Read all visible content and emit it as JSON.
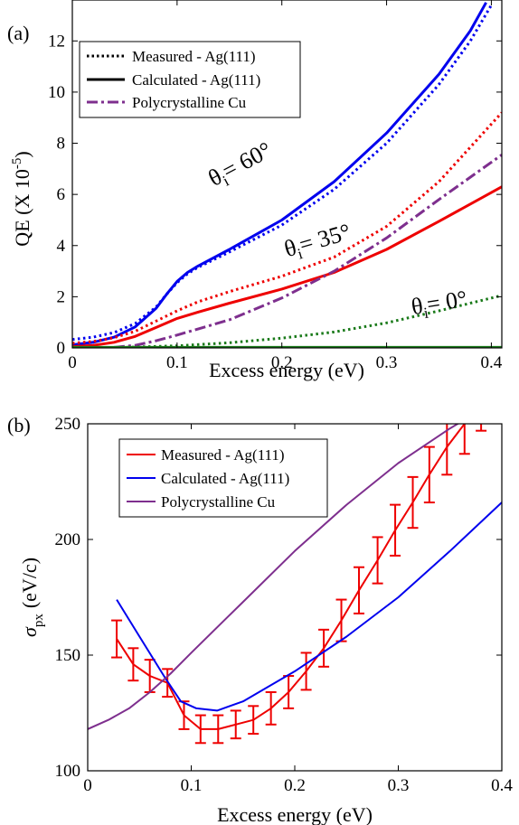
{
  "chart_data": [
    {
      "panel_label": "(a)",
      "type": "line",
      "xlabel": "Excess energy (eV)",
      "ylabel": "QE (X 10",
      "ylabel_exp": "-5",
      "ylabel_close": ")",
      "xlim": [
        0,
        0.41
      ],
      "ylim": [
        0,
        13.6
      ],
      "xticks": [
        0,
        0.1,
        0.2,
        0.3,
        0.4
      ],
      "xtick_labels": [
        "0",
        "0.1",
        "0.2",
        "0.3",
        "0.4"
      ],
      "yticks": [
        0,
        2,
        4,
        6,
        8,
        10,
        12
      ],
      "ytick_labels": [
        "0",
        "2",
        "4",
        "6",
        "8",
        "10",
        "12"
      ],
      "legend": {
        "placement": "top-left",
        "entries": [
          {
            "label": "Measured - Ag(111)",
            "style": "dotted",
            "color": "#000000"
          },
          {
            "label": "Calculated - Ag(111)",
            "style": "solid",
            "color": "#000000"
          },
          {
            "label": "Polycrystalline Cu",
            "style": "dashdot",
            "color": "#7e2f8e"
          }
        ]
      },
      "annotations": [
        {
          "prefix": "θ",
          "sub": "i",
          "suffix": "= 60°",
          "color": "#0000cc",
          "x": 0.135,
          "y": 6.3,
          "rotate": -28
        },
        {
          "prefix": "θ",
          "sub": "i",
          "suffix": "= 35°",
          "color": "#cc0000",
          "x": 0.205,
          "y": 3.55,
          "rotate": -16
        },
        {
          "prefix": "θ",
          "sub": "i",
          "suffix": "= 0°",
          "color": "#1a7a1a",
          "x": 0.325,
          "y": 1.3,
          "rotate": -9
        }
      ],
      "series": [
        {
          "style": "dotted",
          "color": "#0000ee",
          "x": [
            0,
            0.02,
            0.04,
            0.06,
            0.08,
            0.09,
            0.1,
            0.11,
            0.12,
            0.15,
            0.2,
            0.25,
            0.3,
            0.35,
            0.38,
            0.4
          ],
          "y": [
            0.33,
            0.42,
            0.6,
            0.95,
            1.6,
            2.1,
            2.55,
            2.9,
            3.15,
            3.75,
            4.8,
            6.2,
            8.0,
            10.3,
            12.0,
            13.4
          ]
        },
        {
          "style": "solid",
          "color": "#0000ee",
          "x": [
            0,
            0.02,
            0.04,
            0.06,
            0.08,
            0.09,
            0.1,
            0.11,
            0.12,
            0.15,
            0.2,
            0.25,
            0.3,
            0.35,
            0.38,
            0.395
          ],
          "y": [
            0.12,
            0.22,
            0.42,
            0.82,
            1.55,
            2.1,
            2.6,
            2.95,
            3.2,
            3.85,
            5.0,
            6.5,
            8.4,
            10.7,
            12.4,
            13.5
          ]
        },
        {
          "style": "dotted",
          "color": "#ee0000",
          "x": [
            0,
            0.02,
            0.04,
            0.06,
            0.08,
            0.1,
            0.12,
            0.15,
            0.2,
            0.25,
            0.3,
            0.35,
            0.41
          ],
          "y": [
            0.18,
            0.25,
            0.4,
            0.65,
            1.05,
            1.45,
            1.8,
            2.2,
            2.8,
            3.55,
            4.75,
            6.5,
            9.2
          ]
        },
        {
          "style": "solid",
          "color": "#ee0000",
          "x": [
            0,
            0.02,
            0.04,
            0.06,
            0.08,
            0.1,
            0.12,
            0.15,
            0.2,
            0.25,
            0.3,
            0.35,
            0.41
          ],
          "y": [
            0.05,
            0.1,
            0.22,
            0.45,
            0.8,
            1.15,
            1.4,
            1.75,
            2.3,
            2.95,
            3.85,
            4.95,
            6.3
          ]
        },
        {
          "style": "dashdot",
          "color": "#7e2f8e",
          "x": [
            0,
            0.04,
            0.06,
            0.08,
            0.1,
            0.15,
            0.2,
            0.25,
            0.3,
            0.35,
            0.41
          ],
          "y": [
            0,
            0.02,
            0.1,
            0.28,
            0.5,
            1.1,
            1.95,
            3.0,
            4.3,
            5.8,
            7.55
          ]
        },
        {
          "style": "dotted",
          "color": "#1a7a1a",
          "x": [
            0,
            0.05,
            0.1,
            0.15,
            0.2,
            0.25,
            0.3,
            0.35,
            0.41
          ],
          "y": [
            0,
            0.02,
            0.08,
            0.2,
            0.38,
            0.62,
            0.98,
            1.45,
            2.05
          ]
        },
        {
          "style": "solid",
          "color": "#1a7a1a",
          "x": [
            0,
            0.41
          ],
          "y": [
            0.02,
            0.02
          ]
        }
      ]
    },
    {
      "panel_label": "(b)",
      "type": "line",
      "xlabel": "Excess energy (eV)",
      "ylabel": "σ",
      "ylabel_sub": "px",
      "ylabel_unit": "(eV/c)",
      "xlim": [
        0,
        0.4
      ],
      "ylim": [
        100,
        250
      ],
      "xticks": [
        0,
        0.1,
        0.2,
        0.3,
        0.4
      ],
      "xtick_labels": [
        "0",
        "0.1",
        "0.2",
        "0.3",
        "0.4"
      ],
      "yticks": [
        100,
        150,
        200,
        250
      ],
      "ytick_labels": [
        "100",
        "150",
        "200",
        "250"
      ],
      "legend": {
        "placement": "top-left",
        "entries": [
          {
            "label": "Measured - Ag(111)",
            "color": "#ee0000"
          },
          {
            "label": "Calculated - Ag(111)",
            "color": "#0000ee"
          },
          {
            "label": "Polycrystalline Cu",
            "color": "#7e2f8e"
          }
        ]
      },
      "series": [
        {
          "color": "#ee0000",
          "errorbars": true,
          "x": [
            0.028,
            0.044,
            0.06,
            0.077,
            0.093,
            0.109,
            0.126,
            0.143,
            0.16,
            0.177,
            0.194,
            0.211,
            0.228,
            0.245,
            0.262,
            0.28,
            0.297,
            0.314,
            0.33,
            0.347,
            0.364,
            0.38,
            0.397
          ],
          "y": [
            157,
            146,
            141,
            138,
            124,
            118,
            118,
            120,
            122,
            127,
            134,
            143,
            153,
            165,
            178,
            191,
            204,
            216,
            228,
            240,
            250,
            260,
            268
          ],
          "err": [
            8,
            7,
            7,
            6,
            6,
            6,
            6,
            6,
            6,
            7,
            7,
            8,
            8,
            9,
            10,
            10,
            11,
            11,
            12,
            12,
            13,
            13,
            14
          ]
        },
        {
          "color": "#0000ee",
          "x": [
            0.028,
            0.05,
            0.075,
            0.09,
            0.105,
            0.125,
            0.15,
            0.2,
            0.25,
            0.3,
            0.35,
            0.4
          ],
          "y": [
            174,
            158,
            140,
            130,
            127,
            126,
            130,
            143,
            158,
            175,
            195,
            216
          ]
        },
        {
          "color": "#7e2f8e",
          "x": [
            0,
            0.02,
            0.04,
            0.06,
            0.08,
            0.1,
            0.15,
            0.2,
            0.25,
            0.3,
            0.35,
            0.38
          ],
          "y": [
            118,
            122,
            127,
            134,
            142,
            151,
            173,
            195,
            215,
            233,
            248,
            256
          ]
        }
      ]
    }
  ]
}
